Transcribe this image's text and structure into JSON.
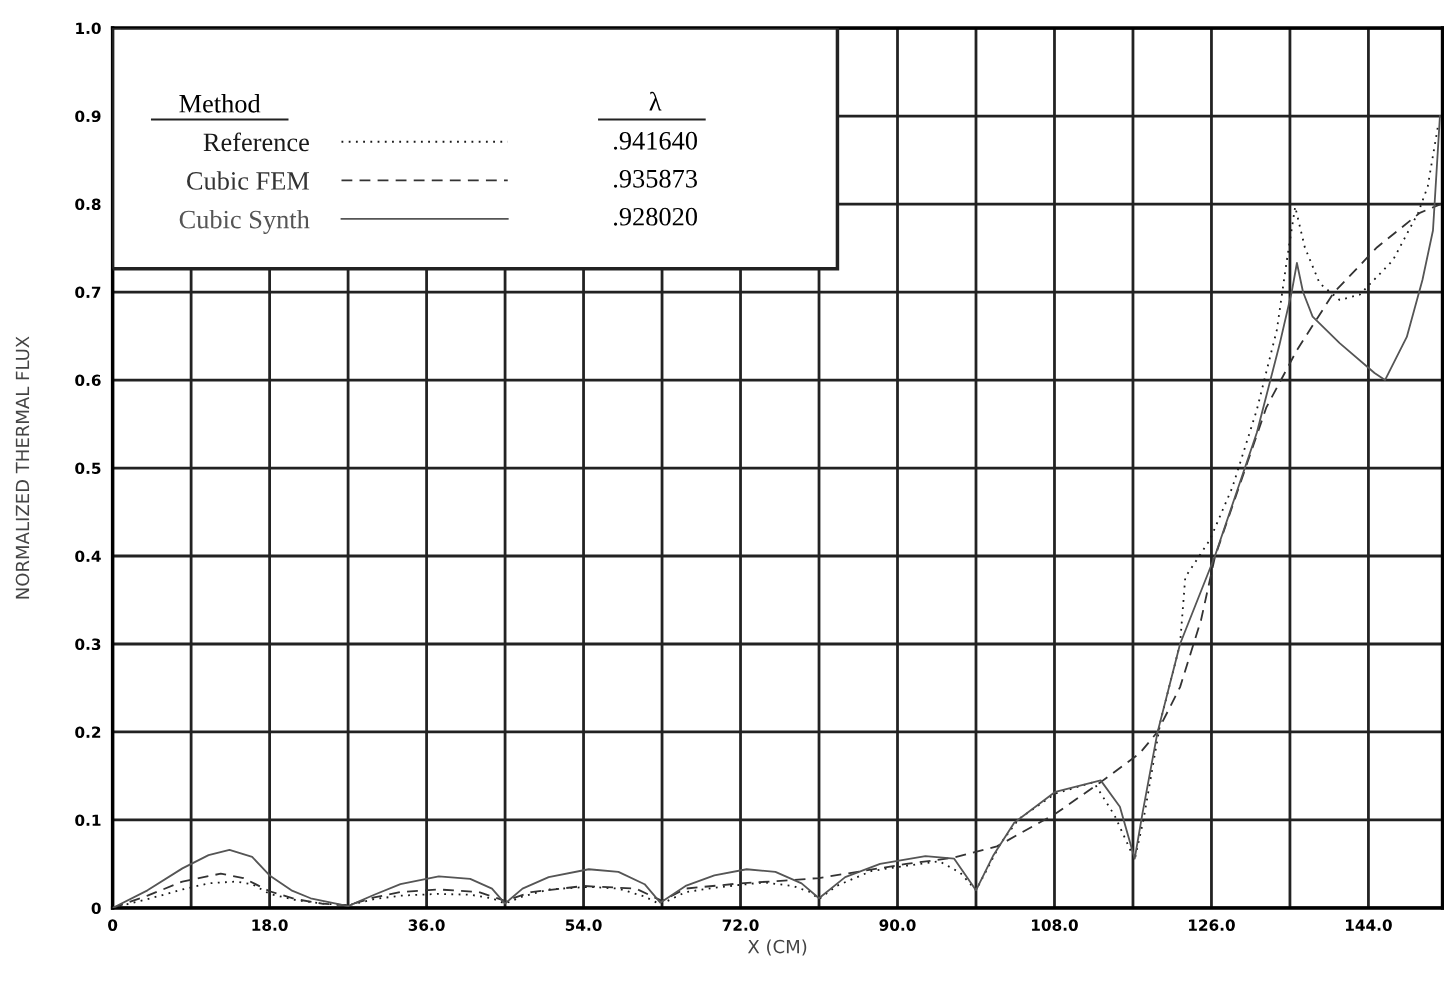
{
  "chart_data": {
    "type": "line",
    "xlabel": "X (CM)",
    "ylabel": "NORMALIZED THERMAL FLUX",
    "legend_title": "Method",
    "legend": "top left",
    "grid": true,
    "marker": "none",
    "xlim": [
      0,
      152.5
    ],
    "ylim": [
      0,
      1.0
    ],
    "xticks": [
      0,
      {
        "value": 9,
        "label": null
      },
      {
        "value": 18,
        "label": "18.0"
      },
      {
        "value": 27,
        "label": null
      },
      {
        "value": 36,
        "label": "36.0"
      },
      {
        "value": 45,
        "label": null
      },
      {
        "value": 54,
        "label": "54.0"
      },
      {
        "value": 63,
        "label": null
      },
      {
        "value": 72,
        "label": "72.0"
      },
      {
        "value": 81,
        "label": null
      },
      {
        "value": 90,
        "label": "90.0"
      },
      {
        "value": 99,
        "label": null
      },
      {
        "value": 108,
        "label": "108.0"
      },
      {
        "value": 117,
        "label": null
      },
      {
        "value": 126,
        "label": "126.0"
      },
      {
        "value": 135,
        "label": null
      },
      {
        "value": 144,
        "label": "144.0"
      }
    ],
    "yticks": [
      0,
      0.1,
      0.2,
      0.3,
      0.4,
      0.5,
      0.6,
      0.7,
      0.8,
      0.9,
      {
        "value": 1.0,
        "label": "1.0"
      }
    ],
    "annotations": [
      "λ",
      ".941640",
      ".935873",
      ".928020"
    ],
    "series": [
      {
        "name": "Reference",
        "color": "#1a1a1a",
        "line_style": "dotted",
        "x": [
          0,
          4,
          8,
          11,
          14.1,
          16,
          18,
          21,
          24,
          27,
          30,
          33,
          37.4,
          41,
          43.5,
          45,
          47,
          50,
          54.6,
          58,
          61,
          62.8,
          65.7,
          69,
          72.7,
          74.7,
          78,
          80,
          81,
          83,
          87,
          91,
          94.8,
          97.2,
          99,
          101.8,
          103.9,
          108.1,
          112.5,
          114.9,
          117.2,
          118.2,
          120.2,
          122.4,
          123,
          125.8,
          128.4,
          131.2,
          133.5,
          134.6,
          135.6,
          136.7,
          138.4,
          140.7,
          143,
          146.8,
          149.7,
          150.8,
          152
        ],
        "values": [
          0,
          0.01,
          0.021,
          0.028,
          0.03,
          0.027,
          0.016,
          0.009,
          0.005,
          0.003,
          0.01,
          0.014,
          0.016,
          0.015,
          0.011,
          0.005,
          0.013,
          0.021,
          0.024,
          0.022,
          0.013,
          0.004,
          0.018,
          0.023,
          0.027,
          0.029,
          0.025,
          0.018,
          0.01,
          0.025,
          0.042,
          0.048,
          0.053,
          0.04,
          0.02,
          0.073,
          0.101,
          0.13,
          0.143,
          0.105,
          0.055,
          0.1,
          0.214,
          0.3,
          0.376,
          0.418,
          0.478,
          0.566,
          0.657,
          0.733,
          0.797,
          0.751,
          0.71,
          0.691,
          0.697,
          0.736,
          0.79,
          0.82,
          0.89
        ]
      },
      {
        "name": "Cubic FEM",
        "color": "#333333",
        "line_style": "dashed",
        "x": [
          0,
          4,
          8,
          12.4,
          15,
          18,
          21,
          24,
          27,
          30,
          33,
          37.4,
          42,
          45,
          48,
          54,
          60,
          63,
          65.7,
          72,
          77,
          81,
          86,
          91,
          96.4,
          101.4,
          108.1,
          113.3,
          117.8,
          119.8,
          122.4,
          124.8,
          126.4,
          132.3,
          135.8,
          140,
          145,
          149.9,
          152.3
        ],
        "values": [
          0,
          0.014,
          0.03,
          0.039,
          0.034,
          0.019,
          0.01,
          0.005,
          0.003,
          0.012,
          0.018,
          0.021,
          0.018,
          0.008,
          0.018,
          0.025,
          0.022,
          0.008,
          0.022,
          0.028,
          0.031,
          0.034,
          0.042,
          0.05,
          0.057,
          0.07,
          0.107,
          0.143,
          0.176,
          0.2,
          0.251,
          0.327,
          0.399,
          0.569,
          0.634,
          0.699,
          0.751,
          0.79,
          0.8
        ]
      },
      {
        "name": "Cubic Synth",
        "color": "#555555",
        "line_style": "solid",
        "x": [
          0,
          4,
          8,
          11,
          13.4,
          16,
          18,
          20.5,
          22.7,
          27,
          30,
          33,
          37.4,
          41,
          43.5,
          45,
          47,
          50,
          54.6,
          58,
          61,
          62.8,
          65.7,
          69,
          72.7,
          76,
          79,
          81,
          84,
          88,
          93.2,
          96.5,
          99,
          101,
          103.4,
          108.1,
          113.3,
          115.5,
          117.2,
          118.1,
          119.8,
          122.4,
          126.4,
          131.2,
          133.8,
          135.2,
          135.8,
          136.5,
          137.6,
          140.7,
          144.7,
          145.9,
          148.4,
          150.2,
          151.4,
          152.2
        ],
        "values": [
          0,
          0.02,
          0.045,
          0.06,
          0.066,
          0.058,
          0.037,
          0.02,
          0.011,
          0.002,
          0.015,
          0.027,
          0.036,
          0.033,
          0.022,
          0.005,
          0.022,
          0.035,
          0.044,
          0.041,
          0.027,
          0.006,
          0.025,
          0.037,
          0.044,
          0.041,
          0.028,
          0.011,
          0.035,
          0.05,
          0.059,
          0.056,
          0.02,
          0.06,
          0.097,
          0.132,
          0.145,
          0.115,
          0.056,
          0.108,
          0.199,
          0.3,
          0.4,
          0.54,
          0.64,
          0.7,
          0.733,
          0.7,
          0.672,
          0.642,
          0.608,
          0.6,
          0.649,
          0.714,
          0.77,
          0.9
        ]
      }
    ]
  }
}
